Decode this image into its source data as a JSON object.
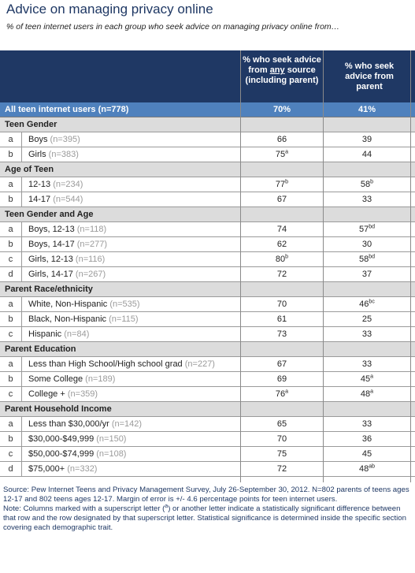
{
  "title": "Advice on managing privacy online",
  "subtitle": "% of teen internet users in each group who seek advice on managing privacy online from…",
  "header": {
    "col1_pre": "% who seek advice from ",
    "col1_underlined": "any",
    "col1_post": " source (including parent)",
    "col2": "% who seek advice from parent"
  },
  "all_row": {
    "label": "All teen internet users (n=778)",
    "v1": "70%",
    "v2": "41%"
  },
  "sections": [
    {
      "title": "Teen Gender",
      "rows": [
        {
          "letter": "a",
          "label": "Boys",
          "n": "(n=395)",
          "v1": "66",
          "s1": "",
          "v2": "39",
          "s2": ""
        },
        {
          "letter": "b",
          "label": "Girls",
          "n": "(n=383)",
          "v1": "75",
          "s1": "a",
          "v2": "44",
          "s2": ""
        }
      ]
    },
    {
      "title": "Age of Teen",
      "rows": [
        {
          "letter": "a",
          "label": "12-13",
          "n": "(n=234)",
          "v1": "77",
          "s1": "b",
          "v2": "58",
          "s2": "b"
        },
        {
          "letter": "b",
          "label": "14-17",
          "n": "(n=544)",
          "v1": "67",
          "s1": "",
          "v2": "33",
          "s2": ""
        }
      ]
    },
    {
      "title": "Teen Gender and Age",
      "rows": [
        {
          "letter": "a",
          "label": "Boys, 12-13",
          "n": "(n=118)",
          "v1": "74",
          "s1": "",
          "v2": "57",
          "s2": "bd"
        },
        {
          "letter": "b",
          "label": "Boys, 14-17",
          "n": "(n=277)",
          "v1": "62",
          "s1": "",
          "v2": "30",
          "s2": ""
        },
        {
          "letter": "c",
          "label": "Girls, 12-13",
          "n": "(n=116)",
          "v1": "80",
          "s1": "b",
          "v2": "58",
          "s2": "bd"
        },
        {
          "letter": "d",
          "label": "Girls, 14-17",
          "n": "(n=267)",
          "v1": "72",
          "s1": "",
          "v2": "37",
          "s2": ""
        }
      ]
    },
    {
      "title": "Parent Race/ethnicity",
      "rows": [
        {
          "letter": "a",
          "label": "White, Non-Hispanic",
          "n": "(n=535)",
          "v1": "70",
          "s1": "",
          "v2": "46",
          "s2": "bc"
        },
        {
          "letter": "b",
          "label": "Black, Non-Hispanic",
          "n": "(n=115)",
          "v1": "61",
          "s1": "",
          "v2": "25",
          "s2": ""
        },
        {
          "letter": "c",
          "label": "Hispanic",
          "n": "(n=84)",
          "v1": "73",
          "s1": "",
          "v2": "33",
          "s2": ""
        }
      ]
    },
    {
      "title": "Parent Education",
      "rows": [
        {
          "letter": "a",
          "label": "Less than High School/High school grad",
          "n": "(n=227)",
          "v1": "67",
          "s1": "",
          "v2": "33",
          "s2": ""
        },
        {
          "letter": "b",
          "label": "Some College",
          "n": "(n=189)",
          "v1": "69",
          "s1": "",
          "v2": "45",
          "s2": "a"
        },
        {
          "letter": "c",
          "label": "College +",
          "n": "(n=359)",
          "v1": "76",
          "s1": "a",
          "v2": "48",
          "s2": "a"
        }
      ]
    },
    {
      "title": "Parent Household Income",
      "rows": [
        {
          "letter": "a",
          "label": "Less than $30,000/yr",
          "n": "(n=142)",
          "v1": "65",
          "s1": "",
          "v2": "33",
          "s2": ""
        },
        {
          "letter": "b",
          "label": "$30,000-$49,999",
          "n": "(n=150)",
          "v1": "70",
          "s1": "",
          "v2": "36",
          "s2": ""
        },
        {
          "letter": "c",
          "label": "$50,000-$74,999",
          "n": "(n=108)",
          "v1": "75",
          "s1": "",
          "v2": "45",
          "s2": ""
        },
        {
          "letter": "d",
          "label": "$75,000+",
          "n": "(n=332)",
          "v1": "72",
          "s1": "",
          "v2": "48",
          "s2": "ab"
        }
      ]
    }
  ],
  "footer": {
    "source": "Source: Pew Internet Teens and Privacy Management Survey, July 26-September 30, 2012. N=802 parents of teens ages 12-17 and 802 teens ages 12-17. Margin of error is +/- 4.6 percentage points for teen internet users.",
    "note_pre": "Note: Columns marked with a superscript letter (",
    "note_sup": "a",
    "note_post": ") or another letter indicate a statistically significant difference between that row and the row designated by that superscript letter. Statistical significance is determined inside the specific section covering each demographic trait."
  }
}
